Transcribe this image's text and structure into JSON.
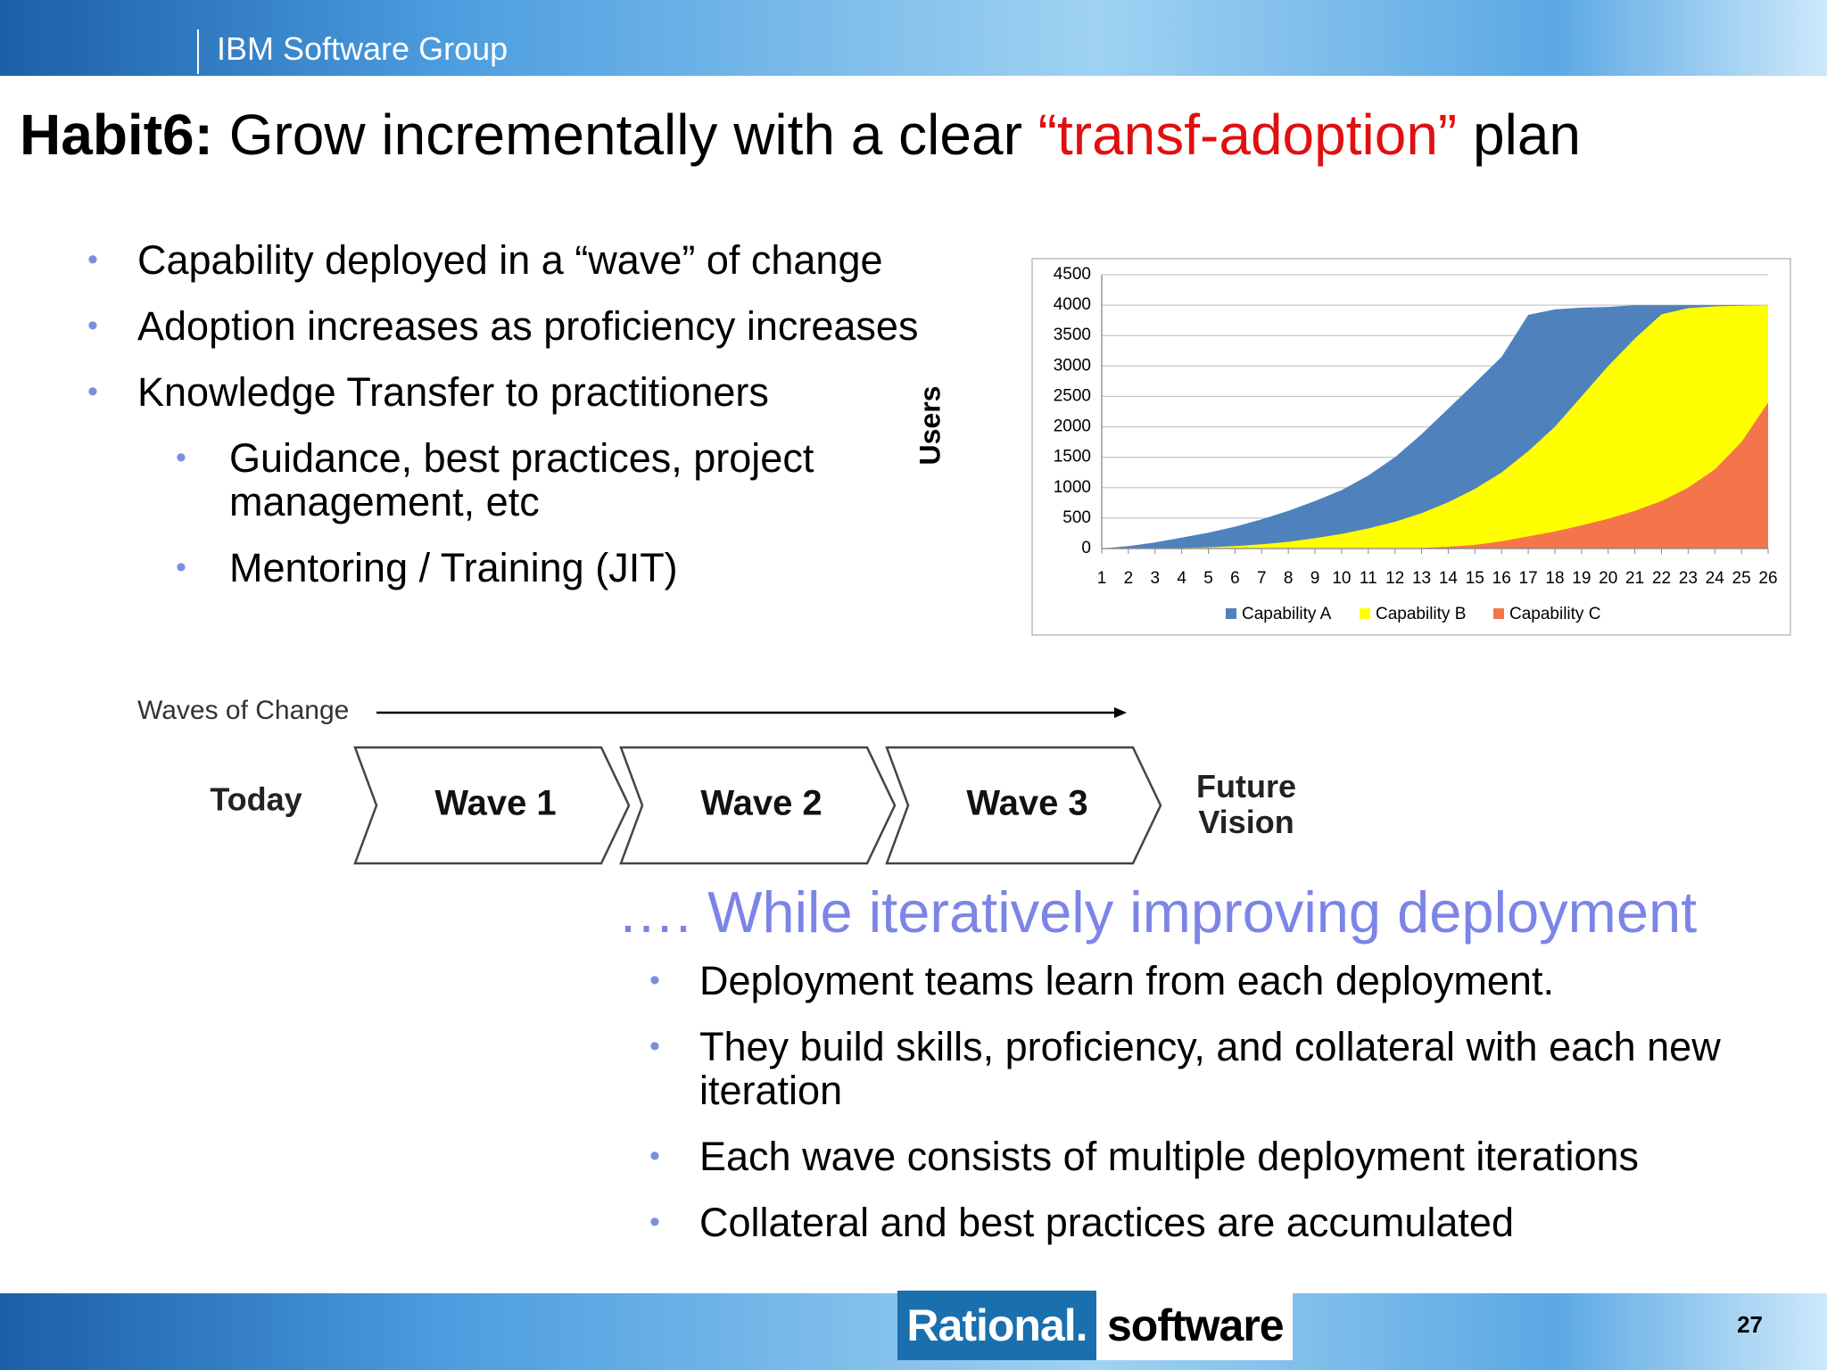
{
  "header": {
    "group": "IBM Software Group"
  },
  "title": {
    "lead": "Habit6:",
    "text": "Grow incrementally with a clear",
    "highlight": "“transf-adoption”",
    "tail": "plan"
  },
  "bullets": [
    {
      "text": "Capability deployed in a “wave” of change",
      "level": 1
    },
    {
      "text": "Adoption increases as proficiency increases",
      "level": 1
    },
    {
      "text": "Knowledge Transfer to practitioners",
      "level": 1
    },
    {
      "text": "Guidance, best practices, project management, etc",
      "level": 2
    },
    {
      "text": "Mentoring / Training (JIT)",
      "level": 2
    }
  ],
  "chart_data": {
    "type": "area",
    "y_label": "Users",
    "categories": [
      "1",
      "2",
      "3",
      "4",
      "5",
      "6",
      "7",
      "8",
      "9",
      "10",
      "11",
      "12",
      "13",
      "14",
      "15",
      "16",
      "17",
      "18",
      "19",
      "20",
      "21",
      "22",
      "23",
      "24",
      "25",
      "26"
    ],
    "series": [
      {
        "name": "Capability A",
        "color": "#4f81bd",
        "values": [
          0,
          40,
          100,
          180,
          260,
          360,
          480,
          620,
          780,
          960,
          1200,
          1500,
          1880,
          2300,
          2720,
          3150,
          3840,
          3930,
          3960,
          3970,
          4000,
          4000,
          4000,
          4000,
          4000,
          4000
        ]
      },
      {
        "name": "Capability B",
        "color": "#ffff00",
        "values": [
          0,
          0,
          5,
          10,
          20,
          40,
          70,
          110,
          170,
          240,
          330,
          440,
          580,
          760,
          980,
          1250,
          1600,
          2000,
          2500,
          3000,
          3450,
          3850,
          3950,
          3980,
          3990,
          4000
        ]
      },
      {
        "name": "Capability C",
        "color": "#f4754c",
        "values": [
          0,
          0,
          0,
          0,
          0,
          0,
          0,
          0,
          0,
          0,
          0,
          0,
          10,
          30,
          60,
          120,
          200,
          280,
          380,
          490,
          620,
          780,
          1000,
          1300,
          1750,
          2400
        ]
      }
    ],
    "ylim": [
      0,
      4500
    ],
    "yticks": [
      0,
      500,
      1000,
      1500,
      2000,
      2500,
      3000,
      3500,
      4000,
      4500
    ],
    "grid": true,
    "legend": "bottom"
  },
  "waves": {
    "label": "Waves of Change",
    "start": "Today",
    "steps": [
      "Wave 1",
      "Wave 2",
      "Wave 3"
    ],
    "end": "Future Vision"
  },
  "subheading": "…. While iteratively improving deployment",
  "bullets2": [
    "Deployment teams learn from each deployment.",
    "They build skills, proficiency, and collateral with each new iteration",
    "Each wave consists of multiple deployment iterations",
    "Collateral and best practices are accumulated"
  ],
  "footer": {
    "brand": "Rational.",
    "product": "software",
    "page": "27"
  }
}
